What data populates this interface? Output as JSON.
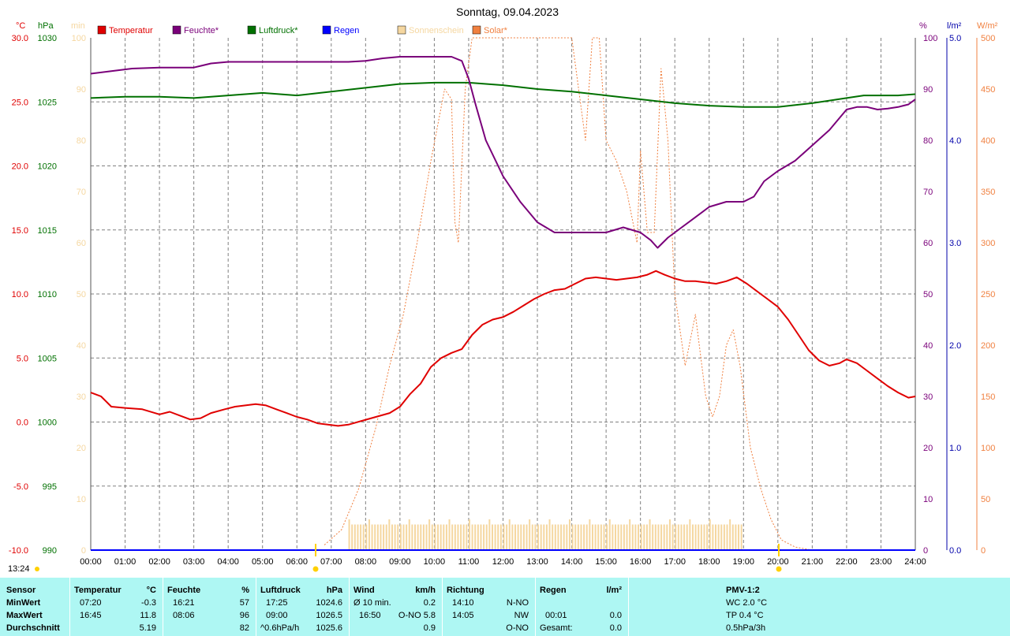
{
  "title": "Sonntag, 09.04.2023",
  "marker_time": "13:24",
  "colors": {
    "temperatur": "#e00000",
    "feuchte": "#7a007a",
    "luftdruck": "#007000",
    "regen": "#0000ff",
    "sonnenschein": "#f5d7a0",
    "solar": "#f08040",
    "grid": "#808080",
    "panel": "#aef7f3"
  },
  "chart_data": {
    "type": "line",
    "title": "Sonntag, 09.04.2023",
    "legend": [
      "Temperatur",
      "Feuchte*",
      "Luftdruck*",
      "Regen",
      "Sonnenschein",
      "Solar*"
    ],
    "axes": {
      "temp": {
        "unit": "°C",
        "ticks": [
          "30.0",
          "25.0",
          "20.0",
          "15.0",
          "10.0",
          "5.0",
          "0.0",
          "-5.0",
          "-10.0"
        ],
        "range": [
          -10,
          30
        ]
      },
      "hpa": {
        "unit": "hPa",
        "ticks": [
          "1030",
          "1025",
          "1020",
          "1015",
          "1010",
          "1005",
          "1000",
          "995",
          "990"
        ],
        "range": [
          990,
          1030
        ]
      },
      "min": {
        "unit": "min",
        "ticks": [
          "100",
          "90",
          "80",
          "70",
          "60",
          "50",
          "40",
          "30",
          "20",
          "10",
          "0"
        ],
        "range": [
          0,
          100
        ]
      },
      "pct": {
        "unit": "%",
        "ticks": [
          "100",
          "90",
          "80",
          "70",
          "60",
          "50",
          "40",
          "30",
          "20",
          "10",
          "0"
        ],
        "range": [
          0,
          100
        ]
      },
      "rain": {
        "unit": "l/m²",
        "ticks": [
          "5.0",
          "4.0",
          "3.0",
          "2.0",
          "1.0",
          "0.0"
        ],
        "range": [
          0,
          5
        ]
      },
      "solar": {
        "unit": "W/m²",
        "ticks": [
          "500",
          "450",
          "400",
          "350",
          "300",
          "250",
          "200",
          "150",
          "100",
          "50",
          "0"
        ],
        "range": [
          0,
          500
        ]
      },
      "x_ticks": [
        "00:00",
        "01:00",
        "02:00",
        "03:00",
        "04:00",
        "05:00",
        "06:00",
        "07:00",
        "08:00",
        "09:00",
        "10:00",
        "11:00",
        "12:00",
        "13:00",
        "14:00",
        "15:00",
        "16:00",
        "17:00",
        "18:00",
        "19:00",
        "20:00",
        "21:00",
        "22:00",
        "23:00",
        "24:00"
      ]
    },
    "series": [
      {
        "name": "Temperatur",
        "axis": "temp",
        "x": [
          0,
          0.3,
          0.6,
          1,
          1.5,
          2,
          2.3,
          2.6,
          2.9,
          3.2,
          3.5,
          3.9,
          4.2,
          4.5,
          4.8,
          5.1,
          5.4,
          5.7,
          6,
          6.3,
          6.6,
          6.9,
          7.2,
          7.5,
          7.9,
          8.3,
          8.7,
          9.0,
          9.3,
          9.6,
          9.9,
          10.2,
          10.5,
          10.8,
          11.1,
          11.4,
          11.7,
          12,
          12.3,
          12.6,
          12.9,
          13.2,
          13.5,
          13.8,
          14.1,
          14.4,
          14.7,
          15,
          15.3,
          15.6,
          15.9,
          16.2,
          16.45,
          16.7,
          17,
          17.3,
          17.6,
          17.9,
          18.2,
          18.5,
          18.8,
          19.1,
          19.4,
          19.7,
          20,
          20.3,
          20.6,
          20.9,
          21.2,
          21.5,
          21.8,
          22,
          22.3,
          22.6,
          22.9,
          23.2,
          23.5,
          23.8,
          24
        ],
        "y": [
          2.3,
          2,
          1.2,
          1.1,
          1,
          0.6,
          0.8,
          0.5,
          0.2,
          0.3,
          0.7,
          1,
          1.2,
          1.3,
          1.4,
          1.3,
          1,
          0.7,
          0.4,
          0.2,
          -0.1,
          -0.2,
          -0.3,
          -0.2,
          0.1,
          0.4,
          0.7,
          1.2,
          2.2,
          3,
          4.3,
          5,
          5.4,
          5.7,
          6.8,
          7.6,
          8,
          8.2,
          8.6,
          9.1,
          9.6,
          10,
          10.3,
          10.4,
          10.8,
          11.2,
          11.3,
          11.2,
          11.1,
          11.2,
          11.3,
          11.5,
          11.8,
          11.5,
          11.2,
          11.0,
          11.0,
          10.9,
          10.8,
          11.0,
          11.3,
          10.8,
          10.2,
          9.6,
          9.0,
          8.0,
          6.8,
          5.6,
          4.8,
          4.4,
          4.6,
          4.9,
          4.6,
          4.0,
          3.4,
          2.8,
          2.3,
          1.9,
          2.0
        ]
      },
      {
        "name": "Feuchte*",
        "axis": "pct",
        "x": [
          0,
          0.6,
          1.2,
          2,
          3,
          3.5,
          4,
          5,
          6,
          7,
          7.5,
          8,
          8.5,
          9,
          10,
          10.5,
          10.8,
          11,
          11.2,
          11.5,
          12,
          12.5,
          13,
          13.5,
          14,
          14.5,
          15,
          15.5,
          16,
          16.3,
          16.5,
          16.8,
          17,
          17.5,
          18,
          18.5,
          19,
          19.3,
          19.6,
          20,
          20.5,
          21,
          21.5,
          22,
          22.3,
          22.6,
          22.9,
          23.2,
          23.5,
          23.8,
          24
        ],
        "y": [
          93,
          93.5,
          94,
          94.2,
          94.2,
          95,
          95.3,
          95.3,
          95.3,
          95.3,
          95.3,
          95.5,
          96,
          96.3,
          96.3,
          96.3,
          95.5,
          92,
          87,
          80,
          73,
          68,
          64,
          62,
          62,
          62,
          62,
          63,
          62,
          60.5,
          59,
          61,
          62,
          64.5,
          67,
          68,
          68,
          69,
          72,
          74,
          76,
          79,
          82,
          86,
          86.5,
          86.5,
          86,
          86.2,
          86.5,
          87,
          88
        ]
      },
      {
        "name": "Luftdruck*",
        "axis": "hpa",
        "x": [
          0,
          1,
          2,
          3,
          4,
          5,
          6,
          7,
          8,
          9,
          10,
          11,
          12,
          13,
          14,
          15,
          16,
          17,
          18,
          19,
          20,
          21,
          22,
          22.5,
          23,
          23.5,
          24
        ],
        "y": [
          1025.3,
          1025.4,
          1025.4,
          1025.3,
          1025.5,
          1025.7,
          1025.5,
          1025.8,
          1026.1,
          1026.4,
          1026.5,
          1026.5,
          1026.3,
          1026.0,
          1025.8,
          1025.5,
          1025.2,
          1024.9,
          1024.7,
          1024.6,
          1024.6,
          1024.9,
          1025.3,
          1025.5,
          1025.5,
          1025.5,
          1025.6
        ]
      },
      {
        "name": "Solar*",
        "axis": "solar",
        "x": [
          6.8,
          7.3,
          7.8,
          8.3,
          8.7,
          9.1,
          9.5,
          9.9,
          10.3,
          10.5,
          10.6,
          10.7,
          10.9,
          11.1,
          11.5,
          12,
          12.5,
          13,
          13.5,
          14,
          14.4,
          14.6,
          14.8,
          15.0,
          15.3,
          15.6,
          15.9,
          16.0,
          16.2,
          16.4,
          16.6,
          16.8,
          17.0,
          17.3,
          17.6,
          17.9,
          18.1,
          18.3,
          18.5,
          18.7,
          18.9,
          19.2,
          19.5,
          19.8,
          20.1,
          20.5,
          21.0
        ],
        "y": [
          5,
          20,
          60,
          120,
          180,
          230,
          300,
          380,
          450,
          440,
          320,
          300,
          450,
          500,
          500,
          500,
          500,
          500,
          500,
          500,
          400,
          500,
          500,
          400,
          380,
          350,
          300,
          390,
          310,
          310,
          470,
          400,
          250,
          180,
          230,
          150,
          130,
          150,
          200,
          215,
          180,
          100,
          60,
          30,
          10,
          3,
          0
        ]
      },
      {
        "name": "Sonnenschein",
        "axis": "min",
        "bars": {
          "from": "07:30",
          "to": "19:00",
          "value": 5
        }
      },
      {
        "name": "Regen",
        "axis": "rain",
        "x": [
          0,
          24
        ],
        "y": [
          0,
          0
        ]
      }
    ]
  },
  "panel": {
    "sensor": {
      "header": "Sensor",
      "rows": [
        "MinWert",
        "MaxWert",
        "Durchschnitt"
      ]
    },
    "temperatur": {
      "header": "Temperatur",
      "unit": "°C",
      "min_time": "07:20",
      "min": "-0.3",
      "max_time": "16:45",
      "max": "11.8",
      "avg": "5.19"
    },
    "feuchte": {
      "header": "Feuchte",
      "unit": "%",
      "min_time": "16:21",
      "min": "57",
      "max_time": "08:06",
      "max": "96",
      "avg": "82"
    },
    "luftdruck": {
      "header": "Luftdruck",
      "unit": "hPa",
      "min_time": "17:25",
      "min": "1024.6",
      "max_time": "09:00",
      "max": "1026.5",
      "avg_label": "^0.6hPa/h",
      "avg": "1025.6"
    },
    "wind": {
      "header": "Wind",
      "unit": "km/h",
      "min_time": "Ø 10 min.",
      "min": "0.2",
      "max_time": "16:50",
      "max": "O-NO 5.8",
      "avg": "0.9"
    },
    "richtung": {
      "header": "Richtung",
      "min_time": "14:10",
      "min": "N-NO",
      "max_time": "14:05",
      "max": "NW",
      "avg": "O-NO"
    },
    "regen": {
      "header": "Regen",
      "unit": "l/m²",
      "max_time": "00:01",
      "max": "0.0",
      "avg_label": "Gesamt:",
      "avg": "0.0"
    },
    "pmv": {
      "header": "PMV-1:2",
      "min": "WC 2.0 °C",
      "max": "TP 0.4 °C",
      "avg": "0.5hPa/3h"
    }
  }
}
